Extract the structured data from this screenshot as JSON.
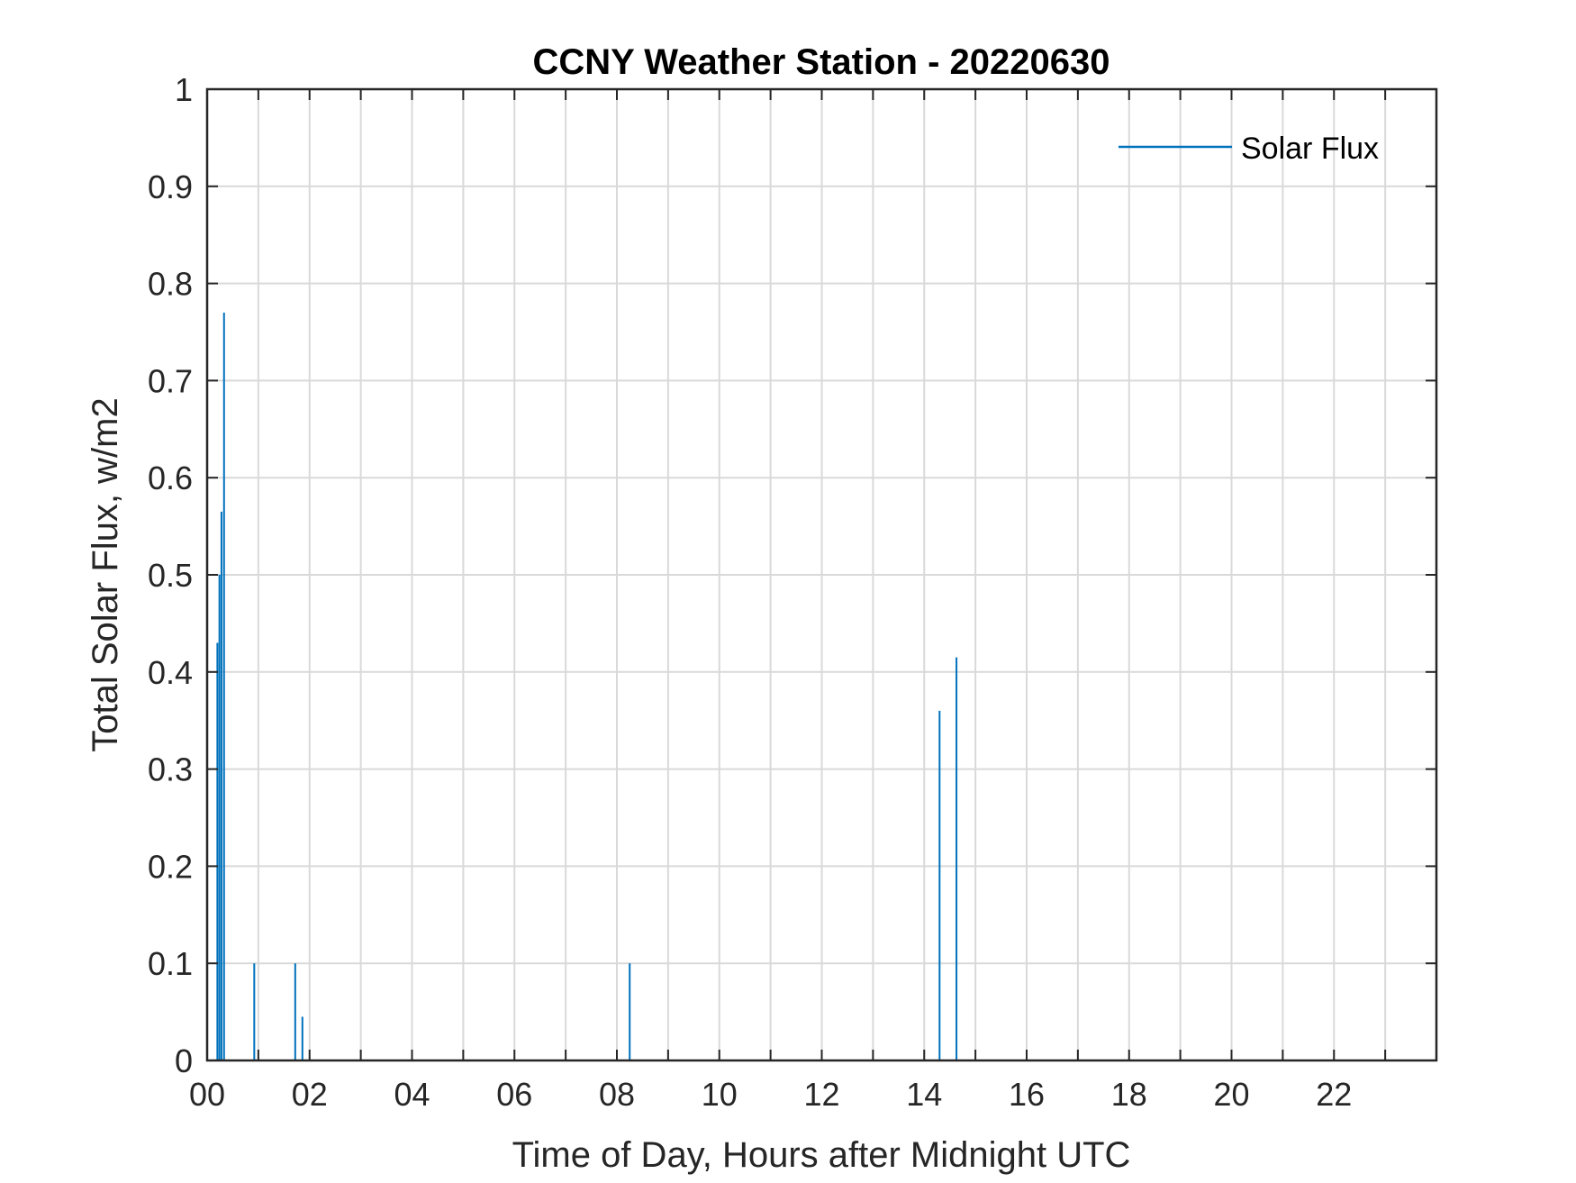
{
  "chart_data": {
    "type": "bar",
    "title": "CCNY Weather Station - 20220630",
    "xlabel": "Time of Day, Hours after Midnight UTC",
    "ylabel": "Total Solar Flux, w/m2",
    "xlim": [
      0,
      24
    ],
    "ylim": [
      0,
      1
    ],
    "x_ticks": [
      0,
      1,
      2,
      3,
      4,
      5,
      6,
      7,
      8,
      9,
      10,
      11,
      12,
      13,
      14,
      15,
      16,
      17,
      18,
      19,
      20,
      21,
      22,
      23
    ],
    "x_tick_labels": [
      "00",
      "02",
      "04",
      "06",
      "08",
      "10",
      "12",
      "14",
      "16",
      "18",
      "20",
      "22"
    ],
    "x_tick_label_values": [
      0,
      2,
      4,
      6,
      8,
      10,
      12,
      14,
      16,
      18,
      20,
      22
    ],
    "y_ticks": [
      0,
      0.1,
      0.2,
      0.3,
      0.4,
      0.5,
      0.6,
      0.7,
      0.8,
      0.9,
      1
    ],
    "y_tick_labels": [
      "0",
      "0.1",
      "0.2",
      "0.3",
      "0.4",
      "0.5",
      "0.6",
      "0.7",
      "0.8",
      "0.9",
      "1"
    ],
    "grid": true,
    "legend": {
      "position": "top-right",
      "entries": [
        "Solar Flux"
      ]
    },
    "series": [
      {
        "name": "Solar Flux",
        "color": "#0072BD",
        "points": [
          {
            "x": 0.2,
            "y": 0.43
          },
          {
            "x": 0.24,
            "y": 0.5
          },
          {
            "x": 0.28,
            "y": 0.565
          },
          {
            "x": 0.33,
            "y": 0.77
          },
          {
            "x": 0.92,
            "y": 0.1
          },
          {
            "x": 1.72,
            "y": 0.1
          },
          {
            "x": 1.86,
            "y": 0.045
          },
          {
            "x": 8.25,
            "y": 0.1
          },
          {
            "x": 14.3,
            "y": 0.36
          },
          {
            "x": 14.63,
            "y": 0.415
          }
        ]
      }
    ]
  }
}
